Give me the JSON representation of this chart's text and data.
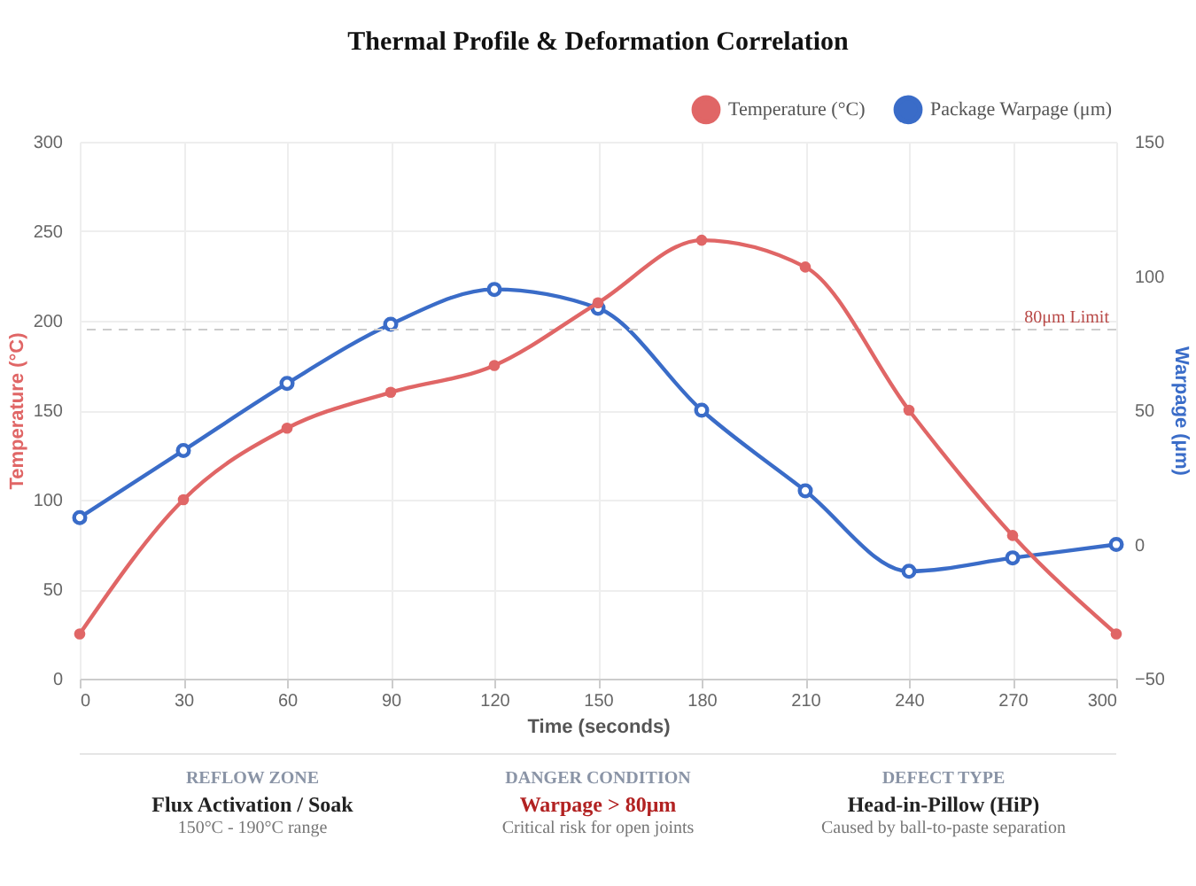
{
  "chart_data": {
    "type": "line",
    "title": "Thermal Profile & Deformation Correlation",
    "xlabel": "Time (seconds)",
    "ylabel": "Temperature (°C)",
    "y2label": "Warpage (μm)",
    "x": [
      0,
      30,
      60,
      90,
      120,
      150,
      180,
      210,
      240,
      270,
      300
    ],
    "series": [
      {
        "name": "Temperature (°C)",
        "color": "#e06666",
        "values": [
          25,
          100,
          140,
          160,
          175,
          210,
          245,
          230,
          150,
          80,
          25
        ]
      },
      {
        "name": "Package Warpage (μm)",
        "color": "#3a6cc8",
        "axis": "y2",
        "values": [
          10,
          35,
          60,
          82,
          95,
          88,
          50,
          20,
          -10,
          -5,
          0
        ]
      }
    ],
    "xlim": [
      0,
      300
    ],
    "xticks": [
      0,
      30,
      60,
      90,
      120,
      150,
      180,
      210,
      240,
      270,
      300
    ],
    "ylim": [
      0,
      300
    ],
    "yticks": [
      0,
      50,
      100,
      150,
      200,
      250,
      300
    ],
    "y2lim": [
      -50,
      150
    ],
    "y2ticks": [
      -50,
      0,
      50,
      100,
      150
    ],
    "ref_lines": [
      {
        "axis": "y2",
        "value": 80,
        "label": "80μm Limit",
        "color": "#cccccc",
        "line_style": "dashed"
      }
    ],
    "grid": true,
    "legend": "top right",
    "marker": "circle",
    "line_style": "solid",
    "annotations": [
      "REFLOW ZONE",
      "Flux Activation / Soak",
      "150°C - 190°C range",
      "DANGER CONDITION",
      "Warpage > 80μm",
      "Critical risk for open joints",
      "DEFECT TYPE",
      "Head-in-Pillow (HiP)",
      "Caused by ball-to-paste separation"
    ]
  }
}
